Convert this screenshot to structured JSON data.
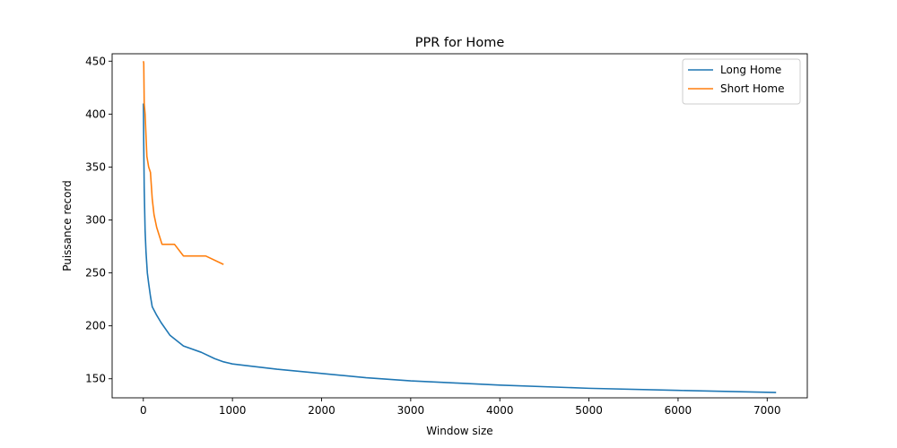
{
  "chart_data": {
    "type": "line",
    "title": "PPR for Home",
    "xlabel": "Window size",
    "ylabel": "Puissance record",
    "xlim": [
      -350,
      7450
    ],
    "ylim": [
      132,
      457
    ],
    "xticks": [
      0,
      1000,
      2000,
      3000,
      4000,
      5000,
      6000,
      7000
    ],
    "yticks": [
      150,
      200,
      250,
      300,
      350,
      400,
      450
    ],
    "grid": false,
    "legend_position": "top-right",
    "series": [
      {
        "name": "Long Home",
        "color": "#1f77b4",
        "x": [
          1,
          5,
          10,
          20,
          30,
          45,
          60,
          80,
          100,
          150,
          200,
          300,
          450,
          650,
          800,
          900,
          1000,
          1200,
          1500,
          2000,
          2500,
          3000,
          3500,
          4000,
          5000,
          6000,
          7100
        ],
        "y": [
          410,
          370,
          330,
          290,
          270,
          250,
          240,
          228,
          218,
          210,
          203,
          191,
          181,
          175,
          169,
          166,
          164,
          162,
          159,
          155,
          151,
          148,
          146,
          144,
          141,
          139,
          137
        ]
      },
      {
        "name": "Short Home",
        "color": "#ff7f0e",
        "x": [
          1,
          5,
          10,
          20,
          40,
          60,
          80,
          100,
          120,
          150,
          180,
          210,
          350,
          450,
          700,
          900
        ],
        "y": [
          450,
          448,
          410,
          400,
          360,
          350,
          345,
          320,
          305,
          293,
          285,
          277,
          277,
          266,
          266,
          258
        ]
      }
    ]
  }
}
